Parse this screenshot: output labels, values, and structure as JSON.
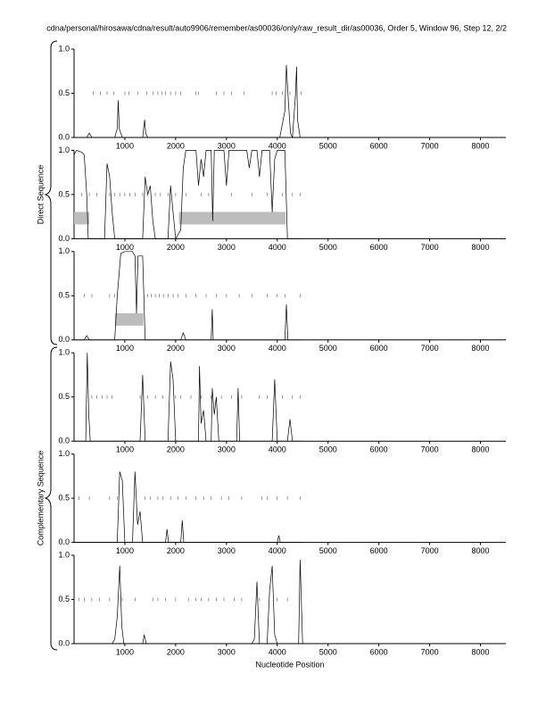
{
  "title": "cdna/personal/hirosawa/cdna/result/auto9906/remember/as00036/only/raw_result_dir/as00036, Order 5, Window 96, Step 12, 2/2",
  "xlabel": "Nucleotide Position",
  "groups": [
    "Direct Sequence",
    "Complementary Sequence"
  ],
  "chart_data": [
    {
      "type": "line",
      "color": "#000000",
      "xlim": [
        0,
        8500
      ],
      "ylim": [
        0,
        1
      ],
      "xticks": [
        1000,
        2000,
        3000,
        4000,
        5000,
        6000,
        7000,
        8000
      ],
      "yticks": [
        {
          "value": 0,
          "label": "0.0"
        },
        0.5,
        {
          "value": 1,
          "label": "1.0"
        }
      ],
      "x": [
        0,
        250,
        300,
        350,
        700,
        800,
        850,
        870,
        890,
        950,
        1350,
        1390,
        1410,
        1450,
        2000,
        4050,
        4150,
        4180,
        4220,
        4260,
        4300,
        4360,
        4380,
        4400,
        4450,
        4500
      ],
      "values": [
        0,
        0,
        0.05,
        0,
        0,
        0,
        0.1,
        0.42,
        0.1,
        0,
        0,
        0.2,
        0.05,
        0,
        0,
        0,
        0.3,
        0.82,
        0.4,
        0.05,
        0,
        0.5,
        0.8,
        0.2,
        0,
        0
      ],
      "markers": [
        380,
        520,
        650,
        780,
        1000,
        1080,
        1250,
        1430,
        1560,
        1650,
        1730,
        1800,
        1900,
        2000,
        2100,
        2400,
        2450,
        2800,
        2950,
        3100,
        3350,
        3900,
        3980,
        4100,
        4250,
        4470
      ],
      "regions": []
    },
    {
      "type": "line",
      "color": "#000000",
      "xlim": [
        0,
        8500
      ],
      "ylim": [
        0,
        1
      ],
      "xticks": [
        1000,
        2000,
        3000,
        4000,
        5000,
        6000,
        7000,
        8000
      ],
      "yticks": [
        {
          "value": 0,
          "label": "0.0"
        },
        0.5,
        {
          "value": 1,
          "label": "1.0"
        }
      ],
      "x": [
        0,
        50,
        150,
        200,
        250,
        280,
        600,
        650,
        700,
        750,
        800,
        1350,
        1400,
        1450,
        1500,
        1550,
        1600,
        1850,
        1900,
        1950,
        2000,
        2100,
        2150,
        2200,
        2400,
        2450,
        2500,
        2550,
        2600,
        2700,
        2730,
        2760,
        2950,
        3000,
        3050,
        3400,
        3450,
        3500,
        3600,
        3650,
        3700,
        3850,
        3900,
        3950,
        4000,
        4150,
        4200,
        4500
      ],
      "values": [
        0.95,
        1,
        0.98,
        0.95,
        0.5,
        0,
        0,
        0.85,
        0.7,
        0.3,
        0,
        0,
        0.7,
        0.5,
        0.6,
        0.2,
        0,
        0,
        0.6,
        0.3,
        0,
        0.1,
        0.8,
        1,
        1,
        0.6,
        0.9,
        0.7,
        1,
        1,
        0.2,
        1,
        1,
        0.6,
        1,
        1,
        0.8,
        1,
        1,
        0.7,
        1,
        1,
        0.3,
        0.9,
        1,
        1,
        0,
        0
      ],
      "markers": [
        150,
        300,
        450,
        700,
        800,
        900,
        1000,
        1100,
        1200,
        1350,
        1450,
        1600,
        1700,
        1850,
        2000,
        2200,
        2500,
        2650,
        3100,
        3500,
        3800,
        4100,
        4300,
        4450
      ],
      "regions": [
        {
          "start": 0,
          "end": 300
        },
        {
          "start": 2065,
          "end": 4165
        }
      ]
    },
    {
      "type": "line",
      "color": "#000000",
      "xlim": [
        0,
        8500
      ],
      "ylim": [
        0,
        1
      ],
      "xticks": [
        1000,
        2000,
        3000,
        4000,
        5000,
        6000,
        7000,
        8000
      ],
      "yticks": [
        {
          "value": 0,
          "label": "0.0"
        },
        0.5,
        {
          "value": 1,
          "label": "1.0"
        }
      ],
      "x": [
        0,
        200,
        250,
        300,
        800,
        850,
        920,
        1000,
        1150,
        1200,
        1230,
        1260,
        1350,
        1400,
        2100,
        2150,
        2200,
        2700,
        2720,
        2740,
        4150,
        4180,
        4210,
        4500
      ],
      "values": [
        0,
        0,
        0.05,
        0,
        0,
        0.5,
        0.98,
        1,
        1,
        0.95,
        0.3,
        0.95,
        0.95,
        0,
        0,
        0.08,
        0,
        0,
        0.35,
        0,
        0,
        0.4,
        0,
        0
      ],
      "markers": [
        200,
        350,
        700,
        800,
        1450,
        1520,
        1600,
        1680,
        1760,
        1850,
        1950,
        2050,
        2200,
        2400,
        2600,
        2800,
        3000,
        3250,
        3500,
        3800,
        4000,
        4150,
        4450
      ],
      "regions": [
        {
          "start": 805,
          "end": 1365
        }
      ]
    },
    {
      "type": "line",
      "color": "#000000",
      "xlim": [
        0,
        8500
      ],
      "ylim": [
        0,
        1
      ],
      "xticks": [
        1000,
        2000,
        3000,
        4000,
        5000,
        6000,
        7000,
        8000
      ],
      "yticks": [
        {
          "value": 0,
          "label": "0.0"
        },
        0.5,
        {
          "value": 1,
          "label": "1.0"
        }
      ],
      "x": [
        0,
        230,
        260,
        290,
        320,
        1300,
        1350,
        1400,
        1850,
        1900,
        1950,
        2000,
        2450,
        2470,
        2500,
        2550,
        2600,
        2700,
        2720,
        2760,
        2800,
        2850,
        3200,
        3230,
        3260,
        3900,
        3950,
        4000,
        4200,
        4250,
        4300,
        4500
      ],
      "values": [
        0,
        0,
        1,
        0.3,
        0,
        0,
        0.75,
        0,
        0,
        0.9,
        0.7,
        0,
        0,
        0.85,
        0.2,
        0.35,
        0,
        0,
        0.6,
        0.3,
        0.5,
        0,
        0,
        0.6,
        0,
        0,
        0.7,
        0,
        0,
        0.25,
        0,
        0
      ],
      "markers": [
        350,
        450,
        550,
        650,
        750,
        1300,
        1450,
        1600,
        1750,
        2000,
        2100,
        2300,
        2500,
        2700,
        2900,
        3100,
        3300,
        3650,
        3800,
        4100,
        4300,
        4450
      ],
      "regions": []
    },
    {
      "type": "line",
      "color": "#000000",
      "xlim": [
        0,
        8500
      ],
      "ylim": [
        0,
        1
      ],
      "xticks": [
        1000,
        2000,
        3000,
        4000,
        5000,
        6000,
        7000,
        8000
      ],
      "yticks": [
        {
          "value": 0,
          "label": "0.0"
        },
        0.5,
        {
          "value": 1,
          "label": "1.0"
        }
      ],
      "x": [
        0,
        850,
        900,
        950,
        1000,
        1150,
        1200,
        1250,
        1300,
        1350,
        1800,
        1830,
        1860,
        2100,
        2130,
        2160,
        4000,
        4030,
        4060,
        4500
      ],
      "values": [
        0,
        0,
        0.8,
        0.7,
        0,
        0,
        0.8,
        0.2,
        0.35,
        0,
        0,
        0.15,
        0,
        0,
        0.25,
        0,
        0,
        0.08,
        0,
        0
      ],
      "markers": [
        100,
        300,
        700,
        850,
        1400,
        1500,
        1650,
        1750,
        1900,
        2050,
        2200,
        2400,
        2550,
        2700,
        2900,
        3050,
        3300,
        3700,
        3800,
        4000,
        4200,
        4450
      ],
      "regions": []
    },
    {
      "type": "line",
      "color": "#000000",
      "xlim": [
        0,
        8500
      ],
      "ylim": [
        0,
        1
      ],
      "xticks": [
        1000,
        2000,
        3000,
        4000,
        5000,
        6000,
        7000,
        8000
      ],
      "yticks": [
        {
          "value": 0,
          "label": "0.0"
        },
        0.5,
        {
          "value": 1,
          "label": "1.0"
        }
      ],
      "x": [
        0,
        750,
        800,
        850,
        900,
        940,
        980,
        1350,
        1380,
        1420,
        3500,
        3550,
        3600,
        3650,
        3800,
        3850,
        3900,
        3950,
        4000,
        4420,
        4450,
        4500
      ],
      "values": [
        0,
        0,
        0.05,
        0.3,
        0.88,
        0.2,
        0,
        0,
        0.1,
        0,
        0,
        0.05,
        0.7,
        0,
        0,
        0.6,
        0.88,
        0.1,
        0,
        0,
        0.95,
        0
      ],
      "markers": [
        100,
        200,
        350,
        500,
        700,
        950,
        1200,
        1550,
        1650,
        1800,
        2000,
        2250,
        2400,
        2500,
        2650,
        2800,
        2950,
        3150,
        3300,
        3650,
        4000,
        4200
      ],
      "regions": []
    }
  ]
}
